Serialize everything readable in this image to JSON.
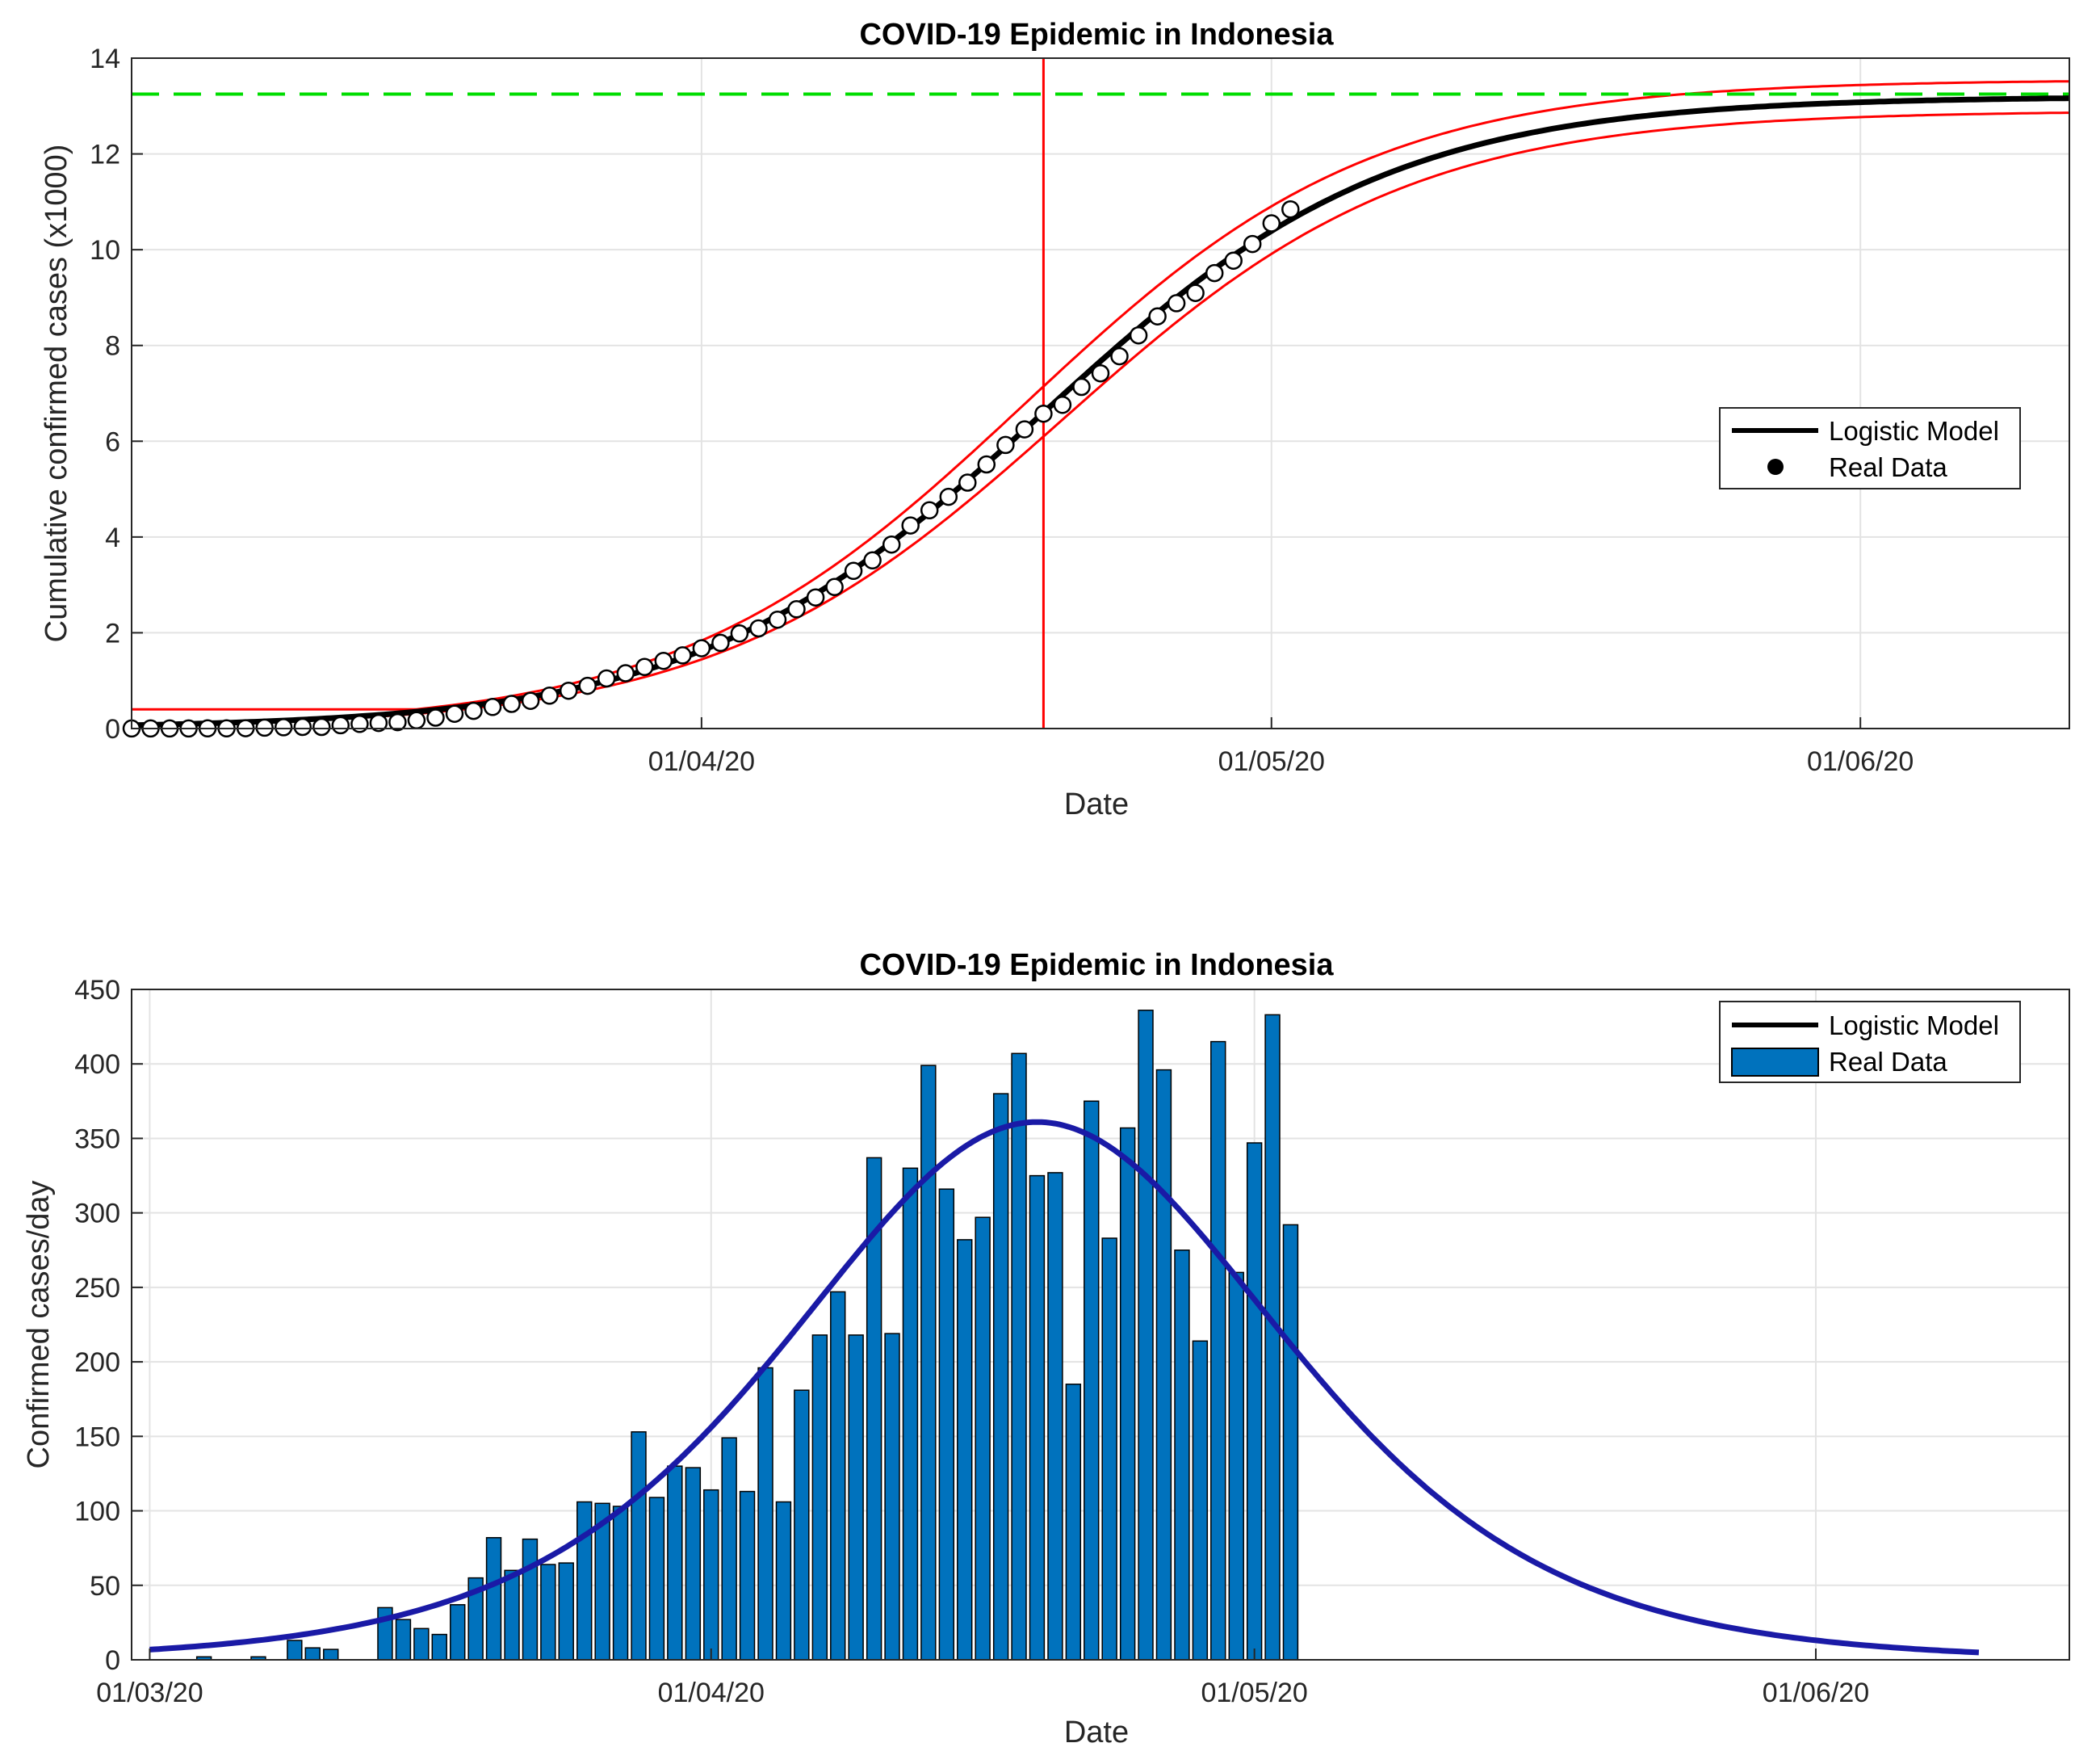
{
  "colors": {
    "model_line": "#000000",
    "ci_line": "#ff0000",
    "asymptote": "#00dd00",
    "peak_line": "#ff0000",
    "marker_fill": "#ffffff",
    "bar_fill": "#0072bd",
    "daily_model": "#1a1aa6",
    "grid": "#e3e3e3"
  },
  "chart_data": [
    {
      "type": "line",
      "title": "COVID-19 Epidemic in Indonesia",
      "xlabel": "Date",
      "ylabel": "Cumulative confirmed cases (x1000)",
      "xlim": [
        "2020-03-02",
        "2020-06-12"
      ],
      "ylim": [
        0,
        14
      ],
      "y_ticks": [
        0,
        2,
        4,
        6,
        8,
        10,
        12,
        14
      ],
      "x_ticks": [
        {
          "date": "2020-04-01",
          "label": "01/04/20"
        },
        {
          "date": "2020-05-01",
          "label": "01/05/20"
        },
        {
          "date": "2020-06-01",
          "label": "01/06/20"
        }
      ],
      "grid": true,
      "legend": {
        "position": "right",
        "entries": [
          "Logistic Model",
          "Real Data"
        ]
      },
      "peak_date": "2020-04-19",
      "asymptote": 13.25,
      "model": {
        "K": 13.2,
        "midpoint": "2020-04-19",
        "rate": 0.109,
        "upper": {
          "K": 13.55,
          "midpoint": "2020-04-18",
          "rate": 0.109,
          "floor": 0.4
        },
        "lower": {
          "K": 12.9,
          "midpoint": "2020-04-20",
          "rate": 0.109
        }
      },
      "series": [
        {
          "name": "Real Data",
          "start_date": "2020-03-02",
          "values": [
            0.002,
            0.002,
            0.002,
            0.002,
            0.004,
            0.004,
            0.006,
            0.019,
            0.027,
            0.034,
            0.034,
            0.069,
            0.096,
            0.117,
            0.134,
            0.172,
            0.227,
            0.309,
            0.369,
            0.45,
            0.514,
            0.579,
            0.686,
            0.79,
            0.893,
            1.046,
            1.155,
            1.285,
            1.414,
            1.528,
            1.677,
            1.79,
            1.986,
            2.092,
            2.273,
            2.491,
            2.738,
            2.956,
            3.293,
            3.512,
            3.842,
            4.241,
            4.557,
            4.839,
            5.136,
            5.516,
            5.923,
            6.248,
            6.575,
            6.76,
            7.135,
            7.418,
            7.775,
            8.211,
            8.607,
            8.882,
            9.096,
            9.511,
            9.771,
            10.118,
            10.551,
            10.843
          ]
        }
      ]
    },
    {
      "type": "bar",
      "title": "COVID-19 Epidemic in Indonesia",
      "xlabel": "Date",
      "ylabel": "Confirmed cases/day",
      "xlim": [
        "2020-02-29",
        "2020-06-15"
      ],
      "ylim": [
        0,
        450
      ],
      "y_ticks": [
        0,
        50,
        100,
        150,
        200,
        250,
        300,
        350,
        400,
        450
      ],
      "x_ticks": [
        {
          "date": "2020-03-01",
          "label": "01/03/20"
        },
        {
          "date": "2020-04-01",
          "label": "01/04/20"
        },
        {
          "date": "2020-05-01",
          "label": "01/05/20"
        },
        {
          "date": "2020-06-01",
          "label": "01/06/20"
        }
      ],
      "grid": true,
      "legend": {
        "position": "top-right",
        "entries": [
          "Logistic Model",
          "Real Data"
        ]
      },
      "model": {
        "peak_value": 361,
        "peak_date": "2020-04-19",
        "rate": 0.109,
        "start": "2020-03-01",
        "end": "2020-06-10"
      },
      "series": [
        {
          "name": "Real Data",
          "start_date": "2020-03-02",
          "values": [
            0,
            0,
            2,
            0,
            0,
            2,
            0,
            13,
            8,
            7,
            0,
            0,
            35,
            27,
            21,
            17,
            37,
            55,
            82,
            60,
            81,
            64,
            65,
            106,
            105,
            103,
            153,
            109,
            130,
            129,
            114,
            149,
            113,
            196,
            106,
            181,
            218,
            247,
            218,
            337,
            219,
            330,
            399,
            316,
            282,
            297,
            380,
            407,
            325,
            327,
            185,
            375,
            283,
            357,
            436,
            396,
            275,
            214,
            415,
            260,
            347,
            433,
            292
          ]
        }
      ]
    }
  ]
}
